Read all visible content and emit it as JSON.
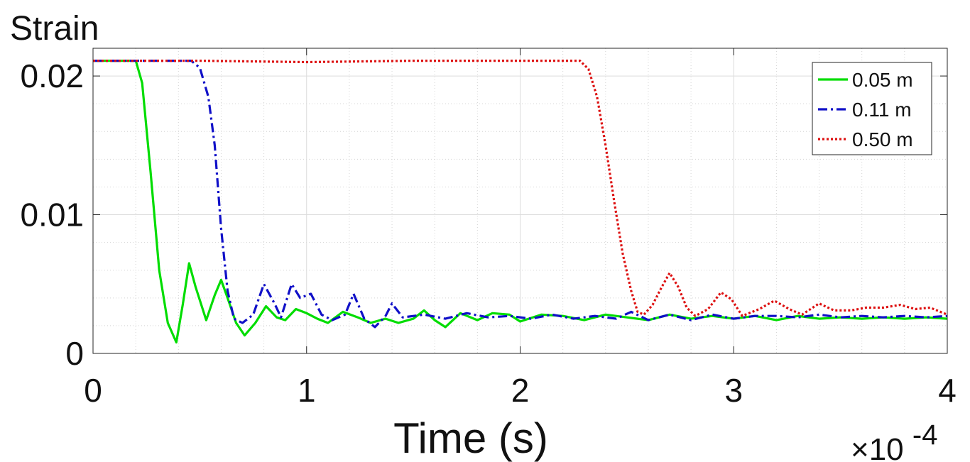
{
  "chart_data": {
    "type": "line",
    "ylabel": "Strain",
    "xlabel": "Time (s)",
    "x_multiplier": {
      "base": "×10",
      "exponent": "-4"
    },
    "xlim": [
      0,
      4
    ],
    "ylim": [
      0,
      0.022
    ],
    "x_ticks": [
      0,
      1,
      2,
      3,
      4
    ],
    "x_tick_labels": [
      "0",
      "1",
      "2",
      "3",
      "4"
    ],
    "y_ticks": [
      0,
      0.01,
      0.02
    ],
    "y_tick_labels": [
      "0",
      "0.01",
      "0.02"
    ],
    "grid": true,
    "minor_grid": true,
    "legend_position": "top-right",
    "series": [
      {
        "name": "0.05 m",
        "color": "#00dd00",
        "dash": "solid",
        "points": [
          [
            0,
            0.0211
          ],
          [
            0.2,
            0.0211
          ],
          [
            0.23,
            0.0195
          ],
          [
            0.27,
            0.013
          ],
          [
            0.31,
            0.006
          ],
          [
            0.35,
            0.0022
          ],
          [
            0.39,
            0.0008
          ],
          [
            0.42,
            0.0035
          ],
          [
            0.45,
            0.0065
          ],
          [
            0.48,
            0.0048
          ],
          [
            0.53,
            0.0024
          ],
          [
            0.57,
            0.0042
          ],
          [
            0.6,
            0.0053
          ],
          [
            0.63,
            0.004
          ],
          [
            0.67,
            0.0022
          ],
          [
            0.71,
            0.0013
          ],
          [
            0.76,
            0.0022
          ],
          [
            0.81,
            0.0034
          ],
          [
            0.86,
            0.0026
          ],
          [
            0.9,
            0.0024
          ],
          [
            0.95,
            0.0032
          ],
          [
            1.0,
            0.0029
          ],
          [
            1.05,
            0.0025
          ],
          [
            1.1,
            0.0022
          ],
          [
            1.17,
            0.003
          ],
          [
            1.24,
            0.0026
          ],
          [
            1.3,
            0.0022
          ],
          [
            1.37,
            0.0025
          ],
          [
            1.43,
            0.0022
          ],
          [
            1.5,
            0.0025
          ],
          [
            1.55,
            0.0031
          ],
          [
            1.6,
            0.0024
          ],
          [
            1.65,
            0.0019
          ],
          [
            1.72,
            0.0029
          ],
          [
            1.8,
            0.0024
          ],
          [
            1.87,
            0.0029
          ],
          [
            1.95,
            0.0028
          ],
          [
            2.0,
            0.0023
          ],
          [
            2.1,
            0.0028
          ],
          [
            2.2,
            0.0027
          ],
          [
            2.3,
            0.0024
          ],
          [
            2.4,
            0.0028
          ],
          [
            2.5,
            0.0026
          ],
          [
            2.6,
            0.0024
          ],
          [
            2.7,
            0.0028
          ],
          [
            2.8,
            0.0025
          ],
          [
            2.9,
            0.0027
          ],
          [
            3.0,
            0.0025
          ],
          [
            3.1,
            0.0027
          ],
          [
            3.2,
            0.0024
          ],
          [
            3.3,
            0.0027
          ],
          [
            3.4,
            0.0025
          ],
          [
            3.5,
            0.0026
          ],
          [
            3.6,
            0.0025
          ],
          [
            3.7,
            0.0026
          ],
          [
            3.8,
            0.0025
          ],
          [
            3.9,
            0.0026
          ],
          [
            4.0,
            0.0025
          ]
        ]
      },
      {
        "name": "0.11 m",
        "color": "#1010c8",
        "dash": "dashdot",
        "points": [
          [
            0,
            0.0211
          ],
          [
            0.46,
            0.0211
          ],
          [
            0.5,
            0.0206
          ],
          [
            0.54,
            0.0185
          ],
          [
            0.57,
            0.015
          ],
          [
            0.6,
            0.009
          ],
          [
            0.63,
            0.0045
          ],
          [
            0.66,
            0.0025
          ],
          [
            0.7,
            0.0022
          ],
          [
            0.75,
            0.0028
          ],
          [
            0.8,
            0.005
          ],
          [
            0.85,
            0.0036
          ],
          [
            0.88,
            0.0026
          ],
          [
            0.93,
            0.005
          ],
          [
            0.97,
            0.004
          ],
          [
            1.02,
            0.0043
          ],
          [
            1.07,
            0.0028
          ],
          [
            1.12,
            0.0024
          ],
          [
            1.18,
            0.0028
          ],
          [
            1.22,
            0.0043
          ],
          [
            1.27,
            0.0025
          ],
          [
            1.32,
            0.0019
          ],
          [
            1.37,
            0.0027
          ],
          [
            1.4,
            0.0036
          ],
          [
            1.45,
            0.0026
          ],
          [
            1.55,
            0.0028
          ],
          [
            1.65,
            0.0025
          ],
          [
            1.75,
            0.0029
          ],
          [
            1.85,
            0.0026
          ],
          [
            1.95,
            0.0027
          ],
          [
            2.05,
            0.0025
          ],
          [
            2.15,
            0.0028
          ],
          [
            2.25,
            0.0025
          ],
          [
            2.35,
            0.0027
          ],
          [
            2.45,
            0.0025
          ],
          [
            2.52,
            0.003
          ],
          [
            2.6,
            0.0024
          ],
          [
            2.7,
            0.0028
          ],
          [
            2.8,
            0.0024
          ],
          [
            2.9,
            0.0028
          ],
          [
            3.0,
            0.0025
          ],
          [
            3.1,
            0.0027
          ],
          [
            3.2,
            0.0027
          ],
          [
            3.3,
            0.0026
          ],
          [
            3.4,
            0.0028
          ],
          [
            3.5,
            0.0026
          ],
          [
            3.6,
            0.0027
          ],
          [
            3.7,
            0.0026
          ],
          [
            3.8,
            0.0027
          ],
          [
            3.9,
            0.0026
          ],
          [
            4.0,
            0.0027
          ]
        ]
      },
      {
        "name": "0.50 m",
        "color": "#dd1111",
        "dash": "dotted",
        "points": [
          [
            0,
            0.0211
          ],
          [
            0.5,
            0.0211
          ],
          [
            1.0,
            0.021
          ],
          [
            1.5,
            0.0211
          ],
          [
            2.0,
            0.0211
          ],
          [
            2.28,
            0.0211
          ],
          [
            2.32,
            0.0205
          ],
          [
            2.36,
            0.0185
          ],
          [
            2.4,
            0.015
          ],
          [
            2.44,
            0.011
          ],
          [
            2.48,
            0.0072
          ],
          [
            2.52,
            0.0045
          ],
          [
            2.55,
            0.003
          ],
          [
            2.58,
            0.0028
          ],
          [
            2.62,
            0.0035
          ],
          [
            2.66,
            0.0047
          ],
          [
            2.7,
            0.0058
          ],
          [
            2.74,
            0.0048
          ],
          [
            2.78,
            0.0033
          ],
          [
            2.82,
            0.0027
          ],
          [
            2.88,
            0.0032
          ],
          [
            2.94,
            0.0044
          ],
          [
            2.99,
            0.0039
          ],
          [
            3.04,
            0.0027
          ],
          [
            3.12,
            0.0032
          ],
          [
            3.19,
            0.0038
          ],
          [
            3.26,
            0.0032
          ],
          [
            3.32,
            0.0028
          ],
          [
            3.4,
            0.0036
          ],
          [
            3.47,
            0.0031
          ],
          [
            3.55,
            0.0031
          ],
          [
            3.62,
            0.0033
          ],
          [
            3.7,
            0.0033
          ],
          [
            3.78,
            0.0035
          ],
          [
            3.85,
            0.0032
          ],
          [
            3.92,
            0.0033
          ],
          [
            4.0,
            0.0028
          ]
        ]
      }
    ]
  }
}
